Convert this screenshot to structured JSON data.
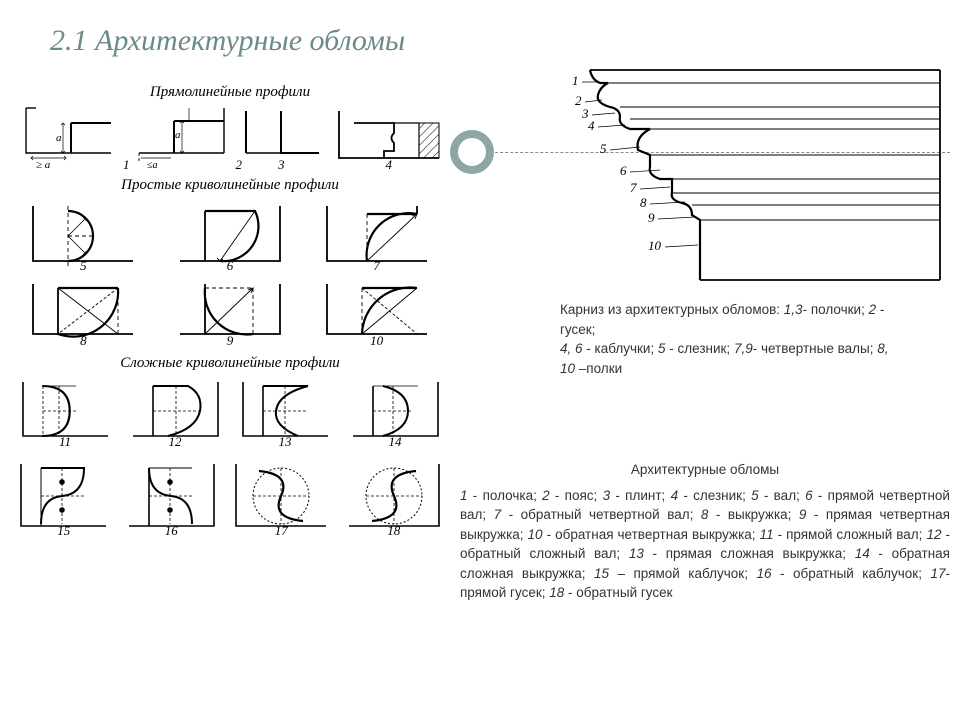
{
  "title": "2.1 Архитектурные обломы",
  "sections": {
    "s1": "Прямолинейные профили",
    "s2": "Простые криволинейные профили",
    "s3": "Сложные криволинейные профили"
  },
  "left_numbers": [
    "1",
    "2",
    "3",
    "4",
    "5",
    "6",
    "7",
    "8",
    "9",
    "10",
    "11",
    "12",
    "13",
    "14",
    "15",
    "16",
    "17",
    "18"
  ],
  "cornice_numbers": [
    "1",
    "2",
    "3",
    "4",
    "5",
    "6",
    "7",
    "8",
    "9",
    "10"
  ],
  "caption1": {
    "line1a": "Карниз из архитектурных обломов: ",
    "l1b": "1,3",
    "l1c": "- полочки; ",
    "l1d": "2",
    "l1e": " - гусек; ",
    "l2a": "4, 6",
    "l2b": " - каблучки; ",
    "l2c": "5",
    "l2d": " - слезник; ",
    "l2e": "7,9",
    "l2f": "- четвертные валы; ",
    "l2g": "8, 10",
    "l2h": " –полки"
  },
  "caption2": {
    "title": "Архитектурные обломы",
    "body": [
      {
        "i": "1",
        "t": " - полочка; "
      },
      {
        "i": "2",
        "t": " - пояс; "
      },
      {
        "i": "3",
        "t": " - плинт; "
      },
      {
        "i": "4",
        "t": " - слезник; "
      },
      {
        "i": "5",
        "t": " - вал; "
      },
      {
        "i": "6",
        "t": " - прямой четвертной вал; "
      },
      {
        "i": "7",
        "t": " - обратный четвертной вал; "
      },
      {
        "i": "8",
        "t": " - выкружка; "
      },
      {
        "i": "9",
        "t": " - прямая четвертная выкружка; "
      },
      {
        "i": "10",
        "t": " - обратная четвертная выкружка; "
      },
      {
        "i": "11",
        "t": " - прямой сложный вал; "
      },
      {
        "i": "12",
        "t": " - обратный сложный вал; "
      },
      {
        "i": "13",
        "t": " - прямая сложная выкружка; "
      },
      {
        "i": "14",
        "t": " - обратная сложная выкружка; "
      },
      {
        "i": "15",
        "t": " – прямой каблучок; "
      },
      {
        "i": "16",
        "t": " - обратный каблучок; "
      },
      {
        "i": "17",
        "t": "- прямой гусек; "
      },
      {
        "i": "18",
        "t": " - обратный гусек"
      }
    ]
  },
  "style": {
    "stroke": "#000000",
    "dash": "3,2",
    "ital_font": "Times New Roman",
    "dim_a": "a",
    "dim_ge_a": "≥ a",
    "dim_le_a": "≤a"
  }
}
